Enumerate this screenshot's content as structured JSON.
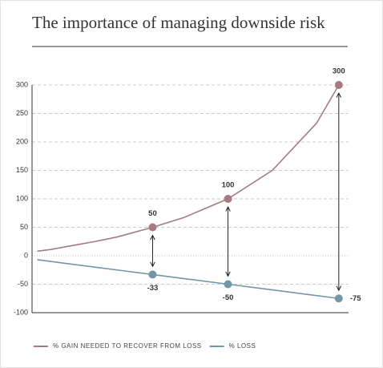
{
  "chart_data": {
    "type": "line",
    "title": "The importance of managing downside risk",
    "x": [
      7,
      10,
      15,
      20,
      25,
      33,
      40,
      50,
      60,
      70,
      75
    ],
    "series": [
      {
        "name": "% GAIN NEEDED TO RECOVER FROM LOSS",
        "color": "#a57a83",
        "values": [
          8,
          11,
          18,
          25,
          33,
          50,
          67,
          100,
          150,
          233,
          300
        ]
      },
      {
        "name": "% LOSS",
        "color": "#7497a8",
        "values": [
          -7,
          -10,
          -15,
          -20,
          -25,
          -33,
          -40,
          -50,
          -60,
          -70,
          -75
        ]
      }
    ],
    "markers": {
      "x": [
        33,
        50,
        75
      ],
      "series": [
        {
          "color": "#a57a83",
          "values": [
            50,
            100,
            300
          ]
        },
        {
          "color": "#7497a8",
          "values": [
            -33,
            -50,
            -75
          ]
        }
      ]
    },
    "xlim": [
      5.8,
      77.2
    ],
    "ylim": [
      -100,
      300
    ],
    "yticks": [
      300,
      250,
      200,
      150,
      100,
      50,
      0,
      -50,
      -100
    ],
    "grid": true
  }
}
